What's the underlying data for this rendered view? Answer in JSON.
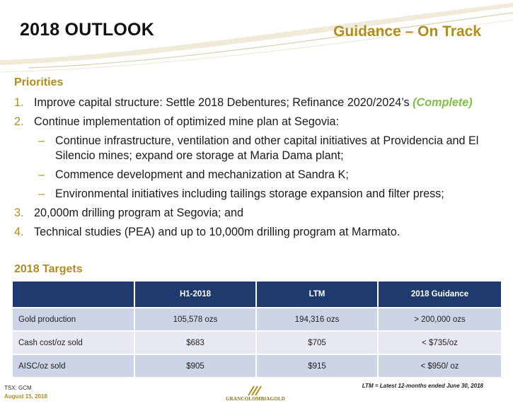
{
  "header": {
    "title": "2018 OUTLOOK",
    "subtitle": "Guidance – On Track"
  },
  "priorities": {
    "heading": "Priorities",
    "items": [
      {
        "num": "1.",
        "text": "Improve capital structure: Settle 2018 Debentures; Refinance 2020/2024’s ",
        "highlight": "(Complete)"
      },
      {
        "num": "2.",
        "text": "Continue implementation of optimized mine plan at Segovia:"
      },
      {
        "dash": "–",
        "text": "Continue infrastructure, ventilation and other capital initiatives at Providencia and El Silencio mines; expand ore storage at Maria Dama plant;"
      },
      {
        "dash": "–",
        "text": "Commence development and mechanization at Sandra K;"
      },
      {
        "dash": "–",
        "text": "Environmental initiatives including tailings storage expansion and filter press;"
      },
      {
        "num": "3.",
        "text": "20,000m drilling program at Segovia; and"
      },
      {
        "num": "4.",
        "text": "Technical studies (PEA) and up to 10,000m drilling program at Marmato."
      }
    ]
  },
  "targets": {
    "heading": "2018 Targets",
    "columns": [
      "",
      "H1-2018",
      "LTM",
      "2018 Guidance"
    ],
    "rows": [
      [
        "Gold production",
        "105,578 ozs",
        "194,316 ozs",
        "> 200,000 ozs"
      ],
      [
        "Cash cost/oz sold",
        "$683",
        "$705",
        "< $735/oz"
      ],
      [
        "AISC/oz sold",
        "$905",
        "$915",
        "< $950/ oz"
      ]
    ],
    "note": "LTM = Latest 12-months ended June 30, 2018"
  },
  "footer": {
    "ticker": "TSX: GCM",
    "date": "August 15, 2018",
    "logo_text": "GRANCOLOMBIAGOLD"
  },
  "colors": {
    "gold": "#b08d1f",
    "navy": "#1f3a6e",
    "green": "#7dc241"
  }
}
